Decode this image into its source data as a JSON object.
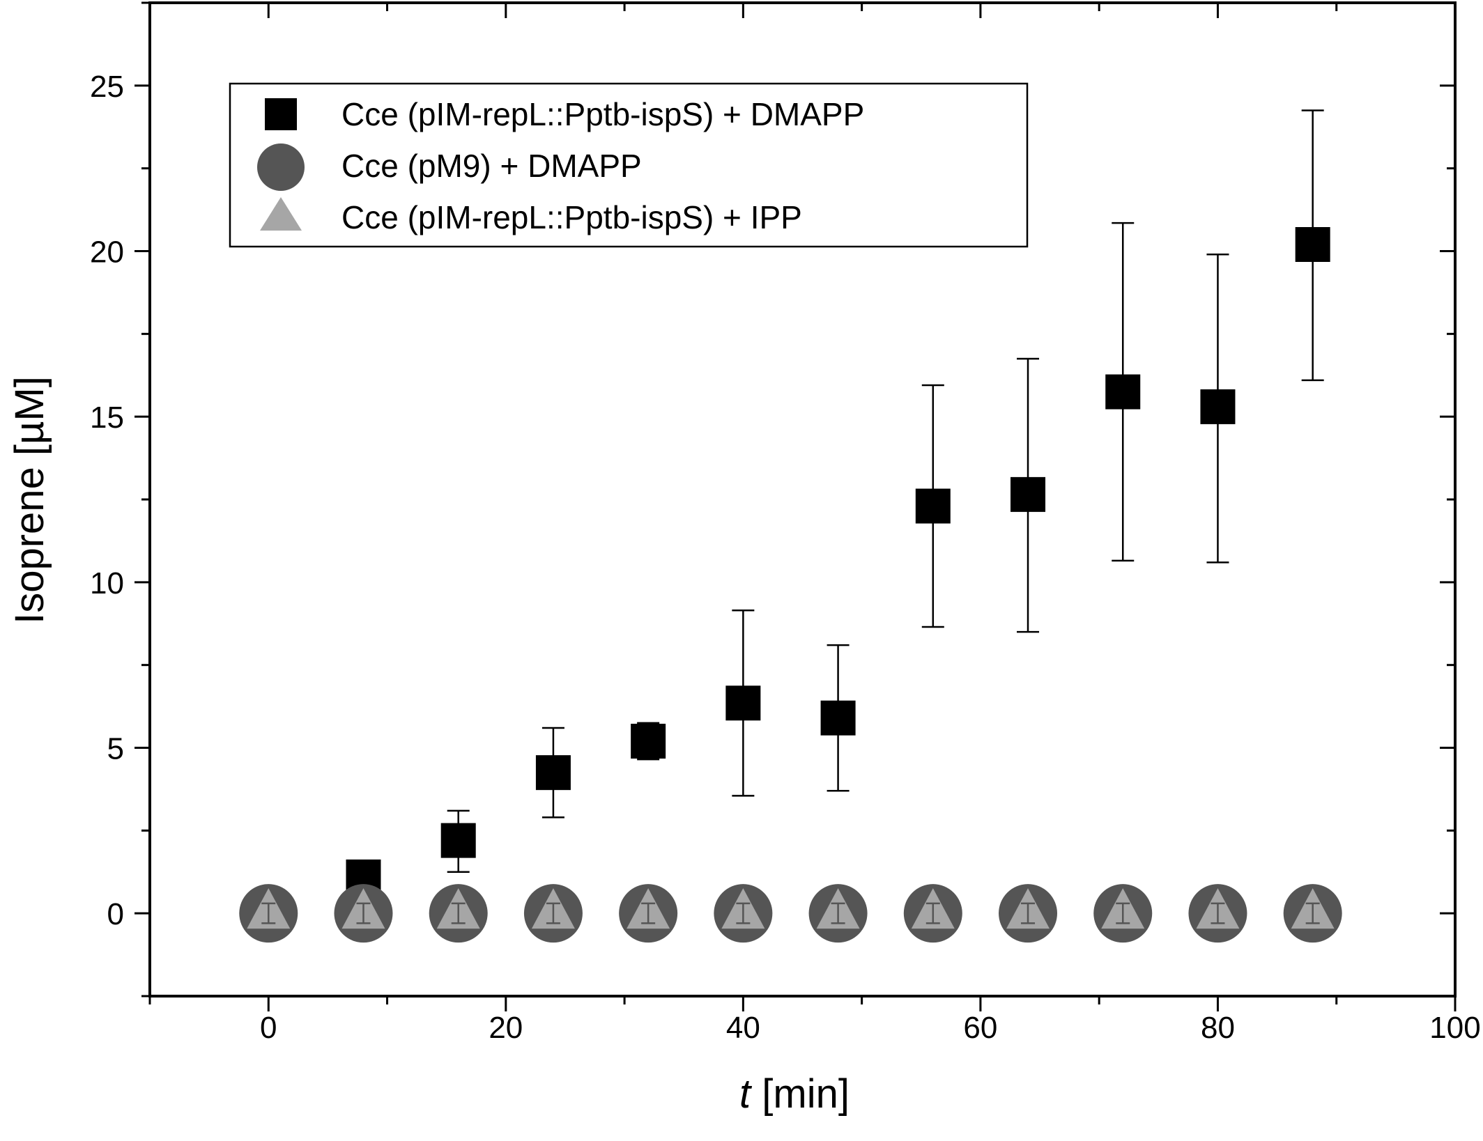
{
  "chart_data": {
    "type": "scatter",
    "xlabel_italic": "t",
    "xlabel_rest": " [min]",
    "ylabel": "Isoprene [µM]",
    "xlim": [
      -10,
      100
    ],
    "ylim": [
      -2.5,
      27.5
    ],
    "xticks": [
      "0",
      "20",
      "40",
      "60",
      "80",
      "100"
    ],
    "xtick_values": [
      0,
      20,
      40,
      60,
      80,
      100
    ],
    "yticks": [
      "0",
      "5",
      "10",
      "15",
      "20",
      "25"
    ],
    "ytick_values": [
      0,
      5,
      10,
      15,
      20,
      25
    ],
    "x_minor_step": 10,
    "y_minor_step": 2.5,
    "legend_position": "top-left",
    "grid": false,
    "series": [
      {
        "name": "Cce (pIM-repL::Pptb-ispS) + DMAPP",
        "marker": "square",
        "color": "#000000",
        "x": [
          0,
          8,
          16,
          24,
          32,
          40,
          48,
          56,
          64,
          72,
          80,
          88
        ],
        "y": [
          0.05,
          1.1,
          2.2,
          4.25,
          5.2,
          6.35,
          5.9,
          12.3,
          12.65,
          15.75,
          15.3,
          20.2
        ],
        "err_low": [
          0.25,
          0.35,
          0.95,
          1.35,
          0.55,
          2.8,
          2.2,
          3.65,
          4.15,
          5.1,
          4.7,
          4.1
        ],
        "err_high": [
          0.3,
          0.35,
          0.9,
          1.35,
          0.55,
          2.8,
          2.2,
          3.65,
          4.1,
          5.1,
          4.6,
          4.05
        ]
      },
      {
        "name": "Cce (pM9) + DMAPP",
        "marker": "circle",
        "color": "#555555",
        "x": [
          0,
          8,
          16,
          24,
          32,
          40,
          48,
          56,
          64,
          72,
          80,
          88
        ],
        "y": [
          0,
          0,
          0,
          0,
          0,
          0,
          0,
          0,
          0,
          0,
          0,
          0
        ],
        "err_low": [
          0,
          0,
          0,
          0,
          0,
          0,
          0,
          0,
          0,
          0,
          0,
          0
        ],
        "err_high": [
          0,
          0,
          0,
          0,
          0,
          0,
          0,
          0,
          0,
          0,
          0,
          0
        ]
      },
      {
        "name": "Cce (pIM-repL::Pptb-ispS) + IPP",
        "marker": "triangle",
        "color": "#a6a6a6",
        "x": [
          0,
          8,
          16,
          24,
          32,
          40,
          48,
          56,
          64,
          72,
          80,
          88
        ],
        "y": [
          0,
          0,
          0,
          0,
          0,
          0,
          0,
          0,
          0,
          0,
          0,
          0
        ],
        "err_low": [
          0.3,
          0.3,
          0.3,
          0.3,
          0.3,
          0.3,
          0.3,
          0.3,
          0.3,
          0.3,
          0.3,
          0.3
        ],
        "err_high": [
          0.3,
          0.3,
          0.3,
          0.3,
          0.3,
          0.3,
          0.3,
          0.3,
          0.3,
          0.3,
          0.3,
          0.3
        ]
      }
    ]
  }
}
